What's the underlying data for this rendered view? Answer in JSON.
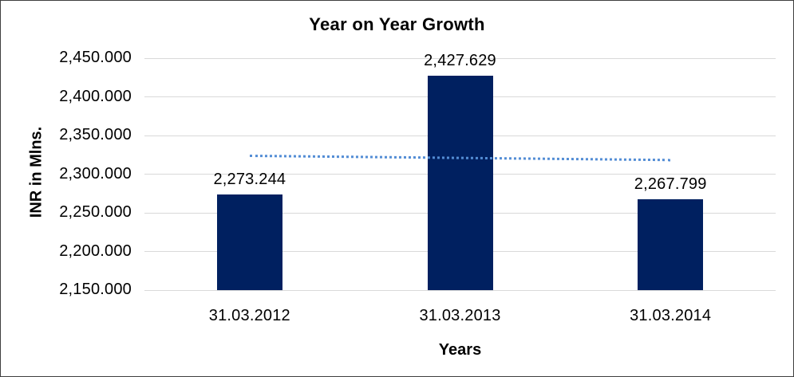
{
  "chart_data": {
    "type": "bar",
    "title": "Year on Year Growth",
    "xlabel": "Years",
    "ylabel": "INR in Mlns.",
    "categories": [
      "31.03.2012",
      "31.03.2013",
      "31.03.2014"
    ],
    "values": [
      2273.244,
      2427.629,
      2267.799
    ],
    "data_labels": [
      "2,273.244",
      "2,427.629",
      "2,267.799"
    ],
    "y_ticks": [
      2150,
      2200,
      2250,
      2300,
      2350,
      2400,
      2450
    ],
    "y_tick_labels": [
      "2,150.000",
      "2,200.000",
      "2,250.000",
      "2,300.000",
      "2,350.000",
      "2,400.000",
      "2,450.000"
    ],
    "ylim": [
      2150,
      2450
    ],
    "grid": true,
    "legend": "none",
    "bar_color": "#002060",
    "gridline_color": "#d9d9d9",
    "trendline": {
      "type": "linear",
      "style": "dotted",
      "color": "#538dd5"
    }
  }
}
